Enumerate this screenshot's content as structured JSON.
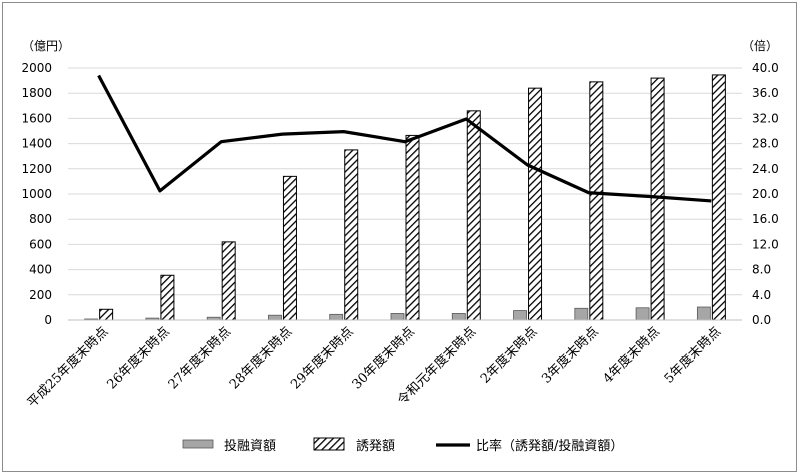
{
  "chart_data": {
    "type": "bar",
    "categories": [
      "平成25年度末時点",
      "26年度末時点",
      "27年度末時点",
      "28年度末時点",
      "29年度末時点",
      "30年度末時点",
      "令和元年度末時点",
      "2年度末時点",
      "3年度末時点",
      "4年度末時点",
      "5年度末時点"
    ],
    "series": [
      {
        "name": "投融資額",
        "type": "bar",
        "axis": "left",
        "color": "#a6a6a6",
        "values": [
          8,
          15,
          22,
          38,
          45,
          52,
          52,
          75,
          93,
          97,
          103
        ]
      },
      {
        "name": "誘発額",
        "type": "bar",
        "axis": "left",
        "pattern": "diagonal-hatch",
        "values": [
          85,
          355,
          620,
          1140,
          1350,
          1465,
          1660,
          1840,
          1890,
          1920,
          1945
        ]
      },
      {
        "name": "比率（誘発額/投融資額）",
        "type": "line",
        "axis": "right",
        "color": "#000000",
        "values": [
          38.8,
          20.5,
          28.3,
          29.5,
          29.9,
          28.3,
          31.9,
          24.6,
          20.2,
          19.6,
          18.9
        ]
      }
    ],
    "left_axis": {
      "unit": "（億円）",
      "min": 0,
      "max": 2000,
      "step": 200,
      "ticks": [
        "0",
        "200",
        "400",
        "600",
        "800",
        "1000",
        "1200",
        "1400",
        "1600",
        "1800",
        "2000"
      ]
    },
    "right_axis": {
      "unit": "（倍）",
      "min": 0,
      "max": 40,
      "step": 4,
      "ticks": [
        "0.0",
        "4.0",
        "8.0",
        "12.0",
        "16.0",
        "20.0",
        "24.0",
        "28.0",
        "32.0",
        "36.0",
        "40.0"
      ]
    },
    "grid": true,
    "legend_position": "bottom"
  }
}
